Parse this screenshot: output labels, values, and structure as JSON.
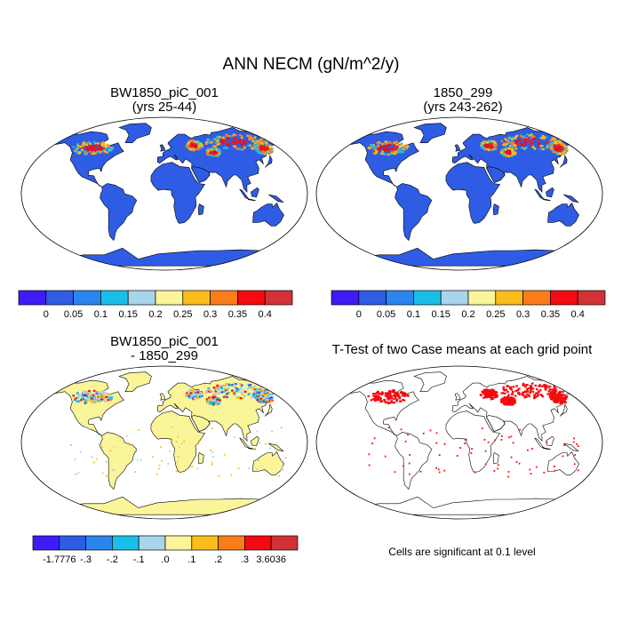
{
  "figure": {
    "title": "ANN NECM (gN/m^2/y)"
  },
  "panels": [
    {
      "id": "case",
      "title_line1": "BW1850_piC_001",
      "title_line2": "(yrs 25-44)"
    },
    {
      "id": "control",
      "title_line1": "1850_299",
      "title_line2": "(yrs 243-262)"
    },
    {
      "id": "diff",
      "title_line1": "BW1850_piC_001",
      "title_line2": "- 1850_299"
    },
    {
      "id": "ttest",
      "title_line1": "T-Test of two Case means at each grid point",
      "title_line2": ""
    }
  ],
  "colorbars": {
    "top": {
      "colors": [
        "#3d1cf6",
        "#2f5ce4",
        "#2a86ee",
        "#19bfe9",
        "#a8d5ec",
        "#fbf59a",
        "#fcbd1c",
        "#fb7d1a",
        "#f40a10",
        "#d13137"
      ],
      "labels": [
        "0",
        "0.05",
        "0.1",
        "0.15",
        "0.2",
        "0.25",
        "0.3",
        "0.35",
        "0.4"
      ]
    },
    "diff": {
      "colors": [
        "#3d1cf6",
        "#2f5ce4",
        "#2a86ee",
        "#19bfe9",
        "#a8d5ec",
        "#fbf59a",
        "#fcbd1c",
        "#fb7d1a",
        "#f40a10",
        "#d13137"
      ],
      "labels": [
        "-1.7776",
        "-.3",
        "-.2",
        "-.1",
        ".0",
        ".1",
        ".2",
        ".3",
        "3.6036"
      ]
    }
  },
  "ttest_note": "Cells are significant at 0.1 level"
}
